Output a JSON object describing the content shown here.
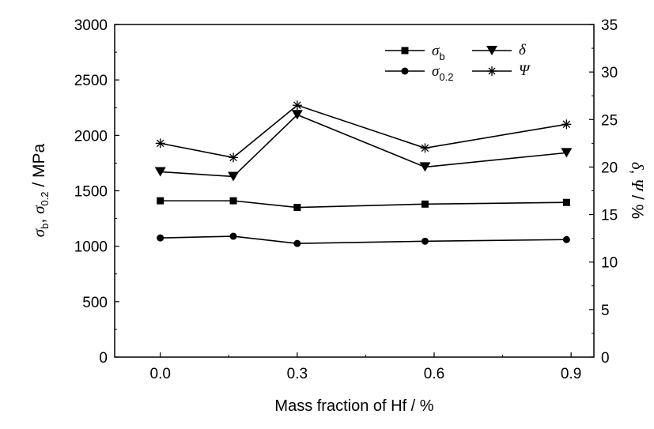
{
  "chart_data": {
    "type": "line",
    "x": [
      0.0,
      0.16,
      0.3,
      0.58,
      0.89
    ],
    "xlabel": "Mass fraction of Hf / %",
    "xlim": [
      -0.1,
      0.95
    ],
    "xticks": [
      0.0,
      0.3,
      0.6,
      0.9
    ],
    "xtick_labels": [
      "0.0",
      "0.3",
      "0.6",
      "0.9"
    ],
    "ylabel_left": "σb, σ0.2 / MPa",
    "ylim_left": [
      0,
      3000
    ],
    "yticks_left": [
      "0",
      "500",
      "1000",
      "1500",
      "2000",
      "2500",
      "3000"
    ],
    "ylabel_right": "δ, Ψ / %",
    "ylim_right": [
      0,
      35
    ],
    "yticks_right": [
      "0",
      "5",
      "10",
      "15",
      "20",
      "25",
      "30",
      "35"
    ],
    "grid": false,
    "legend_position": "top-right",
    "series": [
      {
        "name": "σb",
        "axis": "left",
        "marker": "square",
        "values": [
          1410,
          1410,
          1350,
          1380,
          1395
        ]
      },
      {
        "name": "σ0.2",
        "axis": "left",
        "marker": "circle",
        "values": [
          1075,
          1090,
          1025,
          1045,
          1060
        ]
      },
      {
        "name": "δ",
        "axis": "right",
        "marker": "triangle-down",
        "values": [
          19.5,
          19.0,
          25.5,
          20.0,
          21.5
        ]
      },
      {
        "name": "Ψ",
        "axis": "right",
        "marker": "asterisk",
        "values": [
          22.5,
          21.0,
          26.5,
          22.0,
          24.5
        ]
      }
    ]
  },
  "legend": {
    "sigma_b": {
      "main": "σ",
      "sub": "b"
    },
    "sigma_02": {
      "main": "σ",
      "sub": "0.2"
    },
    "delta": "δ",
    "psi": "Ψ"
  }
}
